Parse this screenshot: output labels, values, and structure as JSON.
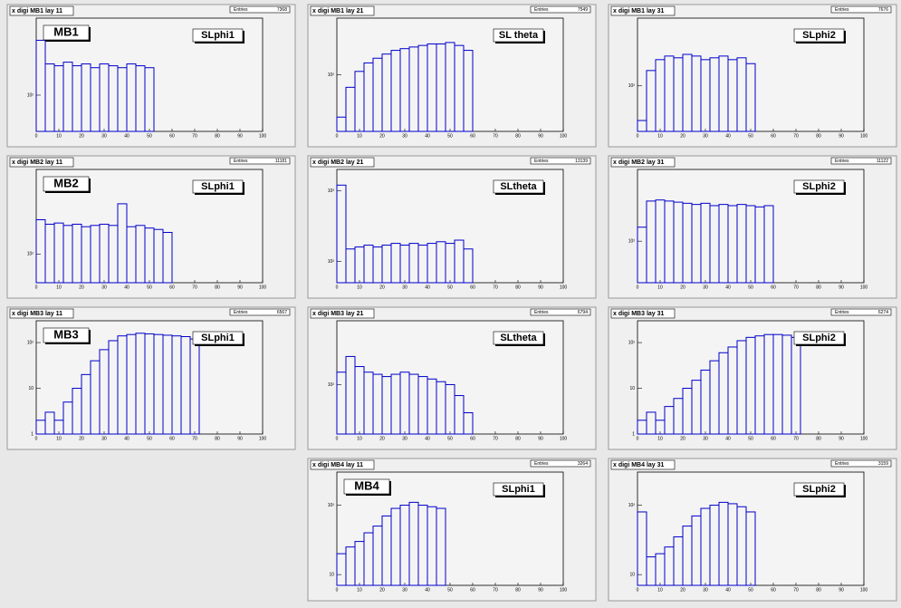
{
  "chart_data": [
    {
      "type": "histogram",
      "title": "x digi MB1 lay 11",
      "stats_label": "Entries",
      "entries": 7368,
      "annotations": [
        "MB1",
        "SLphi1"
      ],
      "bins": [
        0,
        4,
        8,
        12,
        16,
        20,
        24,
        28,
        32,
        36,
        40,
        44,
        48,
        52,
        56,
        60,
        64,
        68,
        72,
        76,
        80,
        84,
        88,
        92,
        96,
        100
      ],
      "values": [
        400,
        220,
        210,
        230,
        210,
        220,
        200,
        220,
        210,
        200,
        220,
        210,
        200,
        0,
        0,
        0,
        0,
        0,
        0,
        0,
        0,
        0,
        0,
        0,
        0
      ],
      "color": "#0000cc",
      "log_y": true,
      "xlim": [
        0,
        100
      ],
      "xticks": [
        0,
        10,
        20,
        30,
        40,
        50,
        60,
        70,
        80,
        90,
        100
      ],
      "ylim": [
        40,
        700
      ],
      "yticks": [
        {
          "value": 100,
          "label": "10²"
        }
      ]
    },
    {
      "type": "histogram",
      "title": "x digi MB1 lay 21",
      "stats_label": "Entries",
      "entries": 7549,
      "annotations": [
        "SL theta"
      ],
      "bins": [
        0,
        4,
        8,
        12,
        16,
        20,
        24,
        28,
        32,
        36,
        40,
        44,
        48,
        52,
        56,
        60,
        64,
        68,
        72,
        76,
        80,
        84,
        88,
        92,
        96,
        100
      ],
      "values": [
        30,
        70,
        110,
        140,
        160,
        180,
        200,
        210,
        220,
        230,
        240,
        240,
        250,
        230,
        200,
        0,
        0,
        0,
        0,
        0,
        0,
        0,
        0,
        0,
        0
      ],
      "color": "#0000cc",
      "log_y": true,
      "xlim": [
        0,
        100
      ],
      "xticks": [
        0,
        10,
        20,
        30,
        40,
        50,
        60,
        70,
        80,
        90,
        100
      ],
      "ylim": [
        20,
        500
      ],
      "yticks": [
        {
          "value": 100,
          "label": "10²"
        }
      ]
    },
    {
      "type": "histogram",
      "title": "x digi MB1 lay 31",
      "stats_label": "Entries",
      "entries": 7676,
      "annotations": [
        "SLphi2"
      ],
      "bins": [
        0,
        4,
        8,
        12,
        16,
        20,
        24,
        28,
        32,
        36,
        40,
        44,
        48,
        52,
        56,
        60,
        64,
        68,
        72,
        76,
        80,
        84,
        88,
        92,
        96,
        100
      ],
      "values": [
        40,
        150,
        200,
        220,
        210,
        230,
        220,
        200,
        210,
        220,
        200,
        210,
        180,
        0,
        0,
        0,
        0,
        0,
        0,
        0,
        0,
        0,
        0,
        0,
        0
      ],
      "color": "#0000cc",
      "log_y": true,
      "xlim": [
        0,
        100
      ],
      "xticks": [
        0,
        10,
        20,
        30,
        40,
        50,
        60,
        70,
        80,
        90,
        100
      ],
      "ylim": [
        30,
        600
      ],
      "yticks": [
        {
          "value": 100,
          "label": "10²"
        }
      ]
    },
    {
      "type": "histogram",
      "title": "x digi MB2 lay 11",
      "stats_label": "Entries",
      "entries": 11181,
      "annotations": [
        "MB2",
        "SLphi1"
      ],
      "bins": [
        0,
        4,
        8,
        12,
        16,
        20,
        24,
        28,
        32,
        36,
        40,
        44,
        48,
        52,
        56,
        60,
        64,
        68,
        72,
        76,
        80,
        84,
        88,
        92,
        96,
        100
      ],
      "values": [
        300,
        260,
        270,
        250,
        260,
        240,
        250,
        260,
        250,
        500,
        240,
        250,
        230,
        220,
        200,
        0,
        0,
        0,
        0,
        0,
        0,
        0,
        0,
        0,
        0
      ],
      "color": "#0000cc",
      "log_y": true,
      "xlim": [
        0,
        100
      ],
      "xticks": [
        0,
        10,
        20,
        30,
        40,
        50,
        60,
        70,
        80,
        90,
        100
      ],
      "ylim": [
        40,
        1500
      ],
      "yticks": [
        {
          "value": 100,
          "label": "10²"
        }
      ]
    },
    {
      "type": "histogram",
      "title": "x digi MB2 lay 21",
      "stats_label": "Entries",
      "entries": 13139,
      "annotations": [
        "SLtheta"
      ],
      "bins": [
        0,
        4,
        8,
        12,
        16,
        20,
        24,
        28,
        32,
        36,
        40,
        44,
        48,
        52,
        56,
        60,
        64,
        68,
        72,
        76,
        80,
        84,
        88,
        92,
        96,
        100
      ],
      "values": [
        1200,
        150,
        160,
        170,
        160,
        170,
        180,
        170,
        180,
        170,
        180,
        190,
        180,
        200,
        150,
        0,
        0,
        0,
        0,
        0,
        0,
        0,
        0,
        0,
        0
      ],
      "color": "#0000cc",
      "log_y": true,
      "xlim": [
        0,
        100
      ],
      "xticks": [
        0,
        10,
        20,
        30,
        40,
        50,
        60,
        70,
        80,
        90,
        100
      ],
      "ylim": [
        50,
        2000
      ],
      "yticks": [
        {
          "value": 100,
          "label": "10²"
        },
        {
          "value": 1000,
          "label": "10³"
        }
      ]
    },
    {
      "type": "histogram",
      "title": "x digi MB2 lay 31",
      "stats_label": "Entries",
      "entries": 11122,
      "annotations": [
        "SLphi2"
      ],
      "bins": [
        0,
        4,
        8,
        12,
        16,
        20,
        24,
        28,
        32,
        36,
        40,
        44,
        48,
        52,
        56,
        60,
        64,
        68,
        72,
        76,
        80,
        84,
        88,
        92,
        96,
        100
      ],
      "values": [
        150,
        320,
        330,
        320,
        310,
        300,
        290,
        300,
        280,
        290,
        280,
        290,
        280,
        270,
        280,
        0,
        0,
        0,
        0,
        0,
        0,
        0,
        0,
        0,
        0
      ],
      "color": "#0000cc",
      "log_y": true,
      "xlim": [
        0,
        100
      ],
      "xticks": [
        0,
        10,
        20,
        30,
        40,
        50,
        60,
        70,
        80,
        90,
        100
      ],
      "ylim": [
        30,
        800
      ],
      "yticks": [
        {
          "value": 100,
          "label": "10²"
        }
      ]
    },
    {
      "type": "histogram",
      "title": "x digi MB3 lay 11",
      "stats_label": "Entries",
      "entries": 6567,
      "annotations": [
        "MB3",
        "SLphi1"
      ],
      "bins": [
        0,
        4,
        8,
        12,
        16,
        20,
        24,
        28,
        32,
        36,
        40,
        44,
        48,
        52,
        56,
        60,
        64,
        68,
        72,
        76,
        80,
        84,
        88,
        92,
        96,
        100
      ],
      "values": [
        2,
        3,
        2,
        5,
        10,
        20,
        40,
        70,
        110,
        140,
        150,
        160,
        155,
        150,
        145,
        140,
        135,
        120,
        0,
        0,
        0,
        0,
        0,
        0,
        0
      ],
      "color": "#0000cc",
      "log_y": true,
      "xlim": [
        0,
        100
      ],
      "xticks": [
        0,
        10,
        20,
        30,
        40,
        50,
        60,
        70,
        80,
        90,
        100
      ],
      "ylim": [
        1,
        300
      ],
      "yticks": [
        1,
        10,
        {
          "value": 100,
          "label": "10²"
        }
      ]
    },
    {
      "type": "histogram",
      "title": "x digi MB3 lay 21",
      "stats_label": "Entries",
      "entries": 6794,
      "annotations": [
        "SLtheta"
      ],
      "bins": [
        0,
        4,
        8,
        12,
        16,
        20,
        24,
        28,
        32,
        36,
        40,
        44,
        48,
        52,
        56,
        60,
        64,
        68,
        72,
        76,
        80,
        84,
        88,
        92,
        96,
        100
      ],
      "values": [
        150,
        250,
        180,
        150,
        140,
        130,
        140,
        150,
        140,
        130,
        120,
        110,
        100,
        70,
        40,
        0,
        0,
        0,
        0,
        0,
        0,
        0,
        0,
        0,
        0
      ],
      "color": "#0000cc",
      "log_y": true,
      "xlim": [
        0,
        100
      ],
      "xticks": [
        0,
        10,
        20,
        30,
        40,
        50,
        60,
        70,
        80,
        90,
        100
      ],
      "ylim": [
        20,
        800
      ],
      "yticks": [
        {
          "value": 100,
          "label": "10²"
        }
      ]
    },
    {
      "type": "histogram",
      "title": "x digi MB3 lay 31",
      "stats_label": "Entries",
      "entries": 6274,
      "annotations": [
        "SLphi2"
      ],
      "bins": [
        0,
        4,
        8,
        12,
        16,
        20,
        24,
        28,
        32,
        36,
        40,
        44,
        48,
        52,
        56,
        60,
        64,
        68,
        72,
        76,
        80,
        84,
        88,
        92,
        96,
        100
      ],
      "values": [
        2,
        3,
        2,
        4,
        6,
        10,
        15,
        25,
        40,
        60,
        80,
        110,
        130,
        140,
        150,
        150,
        145,
        130,
        0,
        0,
        0,
        0,
        0,
        0,
        0
      ],
      "color": "#0000cc",
      "log_y": true,
      "xlim": [
        0,
        100
      ],
      "xticks": [
        0,
        10,
        20,
        30,
        40,
        50,
        60,
        70,
        80,
        90,
        100
      ],
      "ylim": [
        1,
        300
      ],
      "yticks": [
        1,
        10,
        {
          "value": 100,
          "label": "10²"
        }
      ]
    },
    {
      "type": "histogram",
      "title": "x digi MB4 lay 11",
      "stats_label": "Entries",
      "entries": 3264,
      "annotations": [
        "MB4",
        "SLphi1"
      ],
      "bins": [
        0,
        4,
        8,
        12,
        16,
        20,
        24,
        28,
        32,
        36,
        40,
        44,
        48,
        52,
        56,
        60,
        64,
        68,
        72,
        76,
        80,
        84,
        88,
        92,
        96,
        100
      ],
      "values": [
        20,
        25,
        30,
        40,
        50,
        70,
        90,
        100,
        110,
        100,
        95,
        90,
        0,
        0,
        0,
        0,
        0,
        0,
        0,
        0,
        0,
        0,
        0,
        0,
        0
      ],
      "color": "#0000cc",
      "log_y": true,
      "xlim": [
        0,
        100
      ],
      "xticks": [
        0,
        10,
        20,
        30,
        40,
        50,
        60,
        70,
        80,
        90,
        100
      ],
      "ylim": [
        7,
        300
      ],
      "yticks": [
        10,
        {
          "value": 100,
          "label": "10²"
        }
      ]
    },
    {
      "type": "histogram",
      "title": "x digi MB4 lay 31",
      "stats_label": "Entries",
      "entries": 3159,
      "annotations": [
        "SLphi2"
      ],
      "bins": [
        0,
        4,
        8,
        12,
        16,
        20,
        24,
        28,
        32,
        36,
        40,
        44,
        48,
        52,
        56,
        60,
        64,
        68,
        72,
        76,
        80,
        84,
        88,
        92,
        96,
        100
      ],
      "values": [
        80,
        18,
        20,
        25,
        35,
        50,
        70,
        90,
        100,
        110,
        105,
        95,
        80,
        0,
        0,
        0,
        0,
        0,
        0,
        0,
        0,
        0,
        0,
        0,
        0
      ],
      "color": "#0000cc",
      "log_y": true,
      "xlim": [
        0,
        100
      ],
      "xticks": [
        0,
        10,
        20,
        30,
        40,
        50,
        60,
        70,
        80,
        90,
        100
      ],
      "ylim": [
        7,
        300
      ],
      "yticks": [
        10,
        {
          "value": 100,
          "label": "10²"
        }
      ]
    }
  ]
}
